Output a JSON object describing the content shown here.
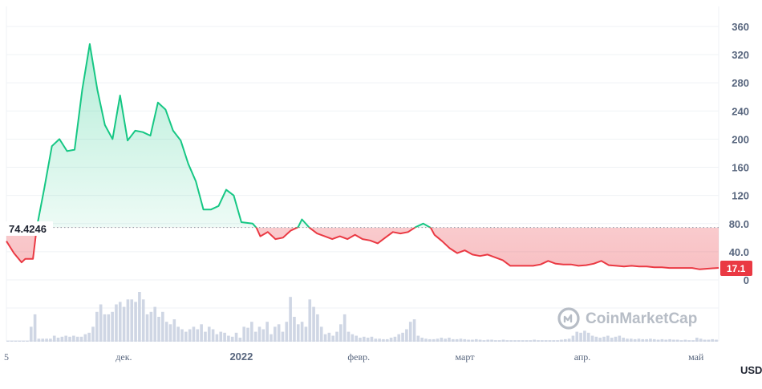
{
  "chart_data": {
    "type": "line",
    "watermark": "CoinMarketCap",
    "currency": "USD",
    "reference_value": 74.4246,
    "reference_label": "74.4246",
    "last_label": "17.1",
    "ylim": [
      -20,
      380
    ],
    "yticks": [
      0,
      40,
      80,
      120,
      160,
      200,
      240,
      280,
      320,
      360
    ],
    "ytick_labels": [
      "0",
      "40.0",
      "80.0",
      "120",
      "160",
      "200",
      "240",
      "280",
      "320",
      "360"
    ],
    "grid": true,
    "colors": {
      "up": "#16c784",
      "down": "#ea3943",
      "volume": "#cfd6e4",
      "grid": "#eff2f5",
      "text": "#58667e"
    },
    "xlim": [
      "2021-10-31",
      "2022-05-07"
    ],
    "xticks": [
      {
        "date": "2021-10-31",
        "label": "5",
        "bold": false
      },
      {
        "date": "2021-12-01",
        "label": "дек.",
        "bold": false
      },
      {
        "date": "2022-01-01",
        "label": "2022",
        "bold": true
      },
      {
        "date": "2022-02-01",
        "label": "февр.",
        "bold": false
      },
      {
        "date": "2022-03-01",
        "label": "март",
        "bold": false
      },
      {
        "date": "2022-04-01",
        "label": "апр.",
        "bold": false
      },
      {
        "date": "2022-05-01",
        "label": "май",
        "bold": false
      }
    ],
    "price": [
      {
        "x": "2021-10-31",
        "y": 55
      },
      {
        "x": "2021-11-02",
        "y": 38
      },
      {
        "x": "2021-11-04",
        "y": 25
      },
      {
        "x": "2021-11-05",
        "y": 30
      },
      {
        "x": "2021-11-07",
        "y": 30
      },
      {
        "x": "2021-11-08",
        "y": 74
      },
      {
        "x": "2021-11-10",
        "y": 130
      },
      {
        "x": "2021-11-12",
        "y": 190
      },
      {
        "x": "2021-11-14",
        "y": 200
      },
      {
        "x": "2021-11-16",
        "y": 183
      },
      {
        "x": "2021-11-18",
        "y": 185
      },
      {
        "x": "2021-11-20",
        "y": 270
      },
      {
        "x": "2021-11-22",
        "y": 335
      },
      {
        "x": "2021-11-24",
        "y": 270
      },
      {
        "x": "2021-11-26",
        "y": 220
      },
      {
        "x": "2021-11-28",
        "y": 200
      },
      {
        "x": "2021-11-30",
        "y": 262
      },
      {
        "x": "2021-12-02",
        "y": 198
      },
      {
        "x": "2021-12-04",
        "y": 212
      },
      {
        "x": "2021-12-06",
        "y": 210
      },
      {
        "x": "2021-12-08",
        "y": 205
      },
      {
        "x": "2021-12-10",
        "y": 252
      },
      {
        "x": "2021-12-12",
        "y": 242
      },
      {
        "x": "2021-12-14",
        "y": 212
      },
      {
        "x": "2021-12-16",
        "y": 198
      },
      {
        "x": "2021-12-18",
        "y": 165
      },
      {
        "x": "2021-12-20",
        "y": 140
      },
      {
        "x": "2021-12-22",
        "y": 100
      },
      {
        "x": "2021-12-24",
        "y": 100
      },
      {
        "x": "2021-12-26",
        "y": 105
      },
      {
        "x": "2021-12-28",
        "y": 128
      },
      {
        "x": "2021-12-30",
        "y": 120
      },
      {
        "x": "2022-01-01",
        "y": 82
      },
      {
        "x": "2022-01-04",
        "y": 80
      },
      {
        "x": "2022-01-05",
        "y": 74
      },
      {
        "x": "2022-01-06",
        "y": 62
      },
      {
        "x": "2022-01-08",
        "y": 68
      },
      {
        "x": "2022-01-10",
        "y": 58
      },
      {
        "x": "2022-01-12",
        "y": 60
      },
      {
        "x": "2022-01-14",
        "y": 70
      },
      {
        "x": "2022-01-16",
        "y": 75
      },
      {
        "x": "2022-01-17",
        "y": 86
      },
      {
        "x": "2022-01-19",
        "y": 74
      },
      {
        "x": "2022-01-21",
        "y": 66
      },
      {
        "x": "2022-01-23",
        "y": 62
      },
      {
        "x": "2022-01-25",
        "y": 58
      },
      {
        "x": "2022-01-27",
        "y": 62
      },
      {
        "x": "2022-01-29",
        "y": 58
      },
      {
        "x": "2022-01-31",
        "y": 64
      },
      {
        "x": "2022-02-02",
        "y": 58
      },
      {
        "x": "2022-02-04",
        "y": 56
      },
      {
        "x": "2022-02-06",
        "y": 52
      },
      {
        "x": "2022-02-08",
        "y": 60
      },
      {
        "x": "2022-02-10",
        "y": 68
      },
      {
        "x": "2022-02-12",
        "y": 66
      },
      {
        "x": "2022-02-14",
        "y": 68
      },
      {
        "x": "2022-02-16",
        "y": 75
      },
      {
        "x": "2022-02-18",
        "y": 80
      },
      {
        "x": "2022-02-20",
        "y": 74
      },
      {
        "x": "2022-02-21",
        "y": 64
      },
      {
        "x": "2022-02-23",
        "y": 55
      },
      {
        "x": "2022-02-25",
        "y": 45
      },
      {
        "x": "2022-02-27",
        "y": 38
      },
      {
        "x": "2022-03-01",
        "y": 42
      },
      {
        "x": "2022-03-03",
        "y": 36
      },
      {
        "x": "2022-03-05",
        "y": 34
      },
      {
        "x": "2022-03-07",
        "y": 36
      },
      {
        "x": "2022-03-09",
        "y": 32
      },
      {
        "x": "2022-03-11",
        "y": 28
      },
      {
        "x": "2022-03-13",
        "y": 20
      },
      {
        "x": "2022-03-15",
        "y": 20
      },
      {
        "x": "2022-03-17",
        "y": 20
      },
      {
        "x": "2022-03-19",
        "y": 20
      },
      {
        "x": "2022-03-21",
        "y": 22
      },
      {
        "x": "2022-03-23",
        "y": 27
      },
      {
        "x": "2022-03-25",
        "y": 23
      },
      {
        "x": "2022-03-27",
        "y": 22
      },
      {
        "x": "2022-03-29",
        "y": 22
      },
      {
        "x": "2022-03-31",
        "y": 20
      },
      {
        "x": "2022-04-02",
        "y": 21
      },
      {
        "x": "2022-04-04",
        "y": 23
      },
      {
        "x": "2022-04-06",
        "y": 27
      },
      {
        "x": "2022-04-08",
        "y": 21
      },
      {
        "x": "2022-04-10",
        "y": 20
      },
      {
        "x": "2022-04-12",
        "y": 19
      },
      {
        "x": "2022-04-14",
        "y": 20
      },
      {
        "x": "2022-04-16",
        "y": 19
      },
      {
        "x": "2022-04-18",
        "y": 19
      },
      {
        "x": "2022-04-20",
        "y": 18
      },
      {
        "x": "2022-04-22",
        "y": 18
      },
      {
        "x": "2022-04-24",
        "y": 17
      },
      {
        "x": "2022-04-26",
        "y": 17
      },
      {
        "x": "2022-04-28",
        "y": 17
      },
      {
        "x": "2022-04-30",
        "y": 17
      },
      {
        "x": "2022-05-02",
        "y": 15
      },
      {
        "x": "2022-05-04",
        "y": 16
      },
      {
        "x": "2022-05-07",
        "y": 17.1
      }
    ],
    "volume_note": "relative trading volume per day (fraction of max), shown as bars",
    "volume": [
      0.02,
      0.02,
      0.02,
      0.02,
      0.02,
      0.02,
      0.3,
      0.55,
      0.06,
      0.06,
      0.06,
      0.06,
      0.12,
      0.08,
      0.1,
      0.12,
      0.1,
      0.12,
      0.1,
      0.1,
      0.15,
      0.18,
      0.3,
      0.6,
      0.75,
      0.55,
      0.55,
      0.6,
      0.75,
      0.8,
      0.7,
      0.85,
      0.85,
      0.8,
      1.0,
      0.85,
      0.55,
      0.6,
      0.7,
      0.5,
      0.6,
      0.4,
      0.35,
      0.45,
      0.3,
      0.25,
      0.2,
      0.25,
      0.3,
      0.25,
      0.35,
      0.2,
      0.3,
      0.25,
      0.15,
      0.2,
      0.18,
      0.12,
      0.1,
      0.18,
      0.08,
      0.3,
      0.28,
      0.4,
      0.2,
      0.3,
      0.25,
      0.4,
      0.15,
      0.3,
      0.35,
      0.2,
      0.4,
      0.9,
      0.5,
      0.35,
      0.4,
      0.3,
      0.85,
      0.7,
      0.55,
      0.3,
      0.15,
      0.18,
      0.12,
      0.2,
      0.35,
      0.55,
      0.2,
      0.15,
      0.12,
      0.08,
      0.1,
      0.08,
      0.1,
      0.06,
      0.06,
      0.05,
      0.05,
      0.08,
      0.1,
      0.15,
      0.18,
      0.25,
      0.4,
      0.45,
      0.12,
      0.08,
      0.06,
      0.05,
      0.05,
      0.06,
      0.08,
      0.06,
      0.08,
      0.05,
      0.05,
      0.06,
      0.05,
      0.04,
      0.04,
      0.05,
      0.04,
      0.03,
      0.04,
      0.04,
      0.03,
      0.03,
      0.04,
      0.03,
      0.03,
      0.03,
      0.03,
      0.03,
      0.03,
      0.03,
      0.04,
      0.03,
      0.03,
      0.03,
      0.03,
      0.03,
      0.03,
      0.04,
      0.05,
      0.06,
      0.12,
      0.2,
      0.18,
      0.22,
      0.18,
      0.12,
      0.1,
      0.08,
      0.1,
      0.12,
      0.08,
      0.1,
      0.12,
      0.08,
      0.06,
      0.06,
      0.05,
      0.06,
      0.05,
      0.05,
      0.06,
      0.05,
      0.04,
      0.05,
      0.04,
      0.05,
      0.04,
      0.04,
      0.03,
      0.04,
      0.03,
      0.03,
      0.08,
      0.06,
      0.04,
      0.04,
      0.05,
      0.04
    ]
  }
}
